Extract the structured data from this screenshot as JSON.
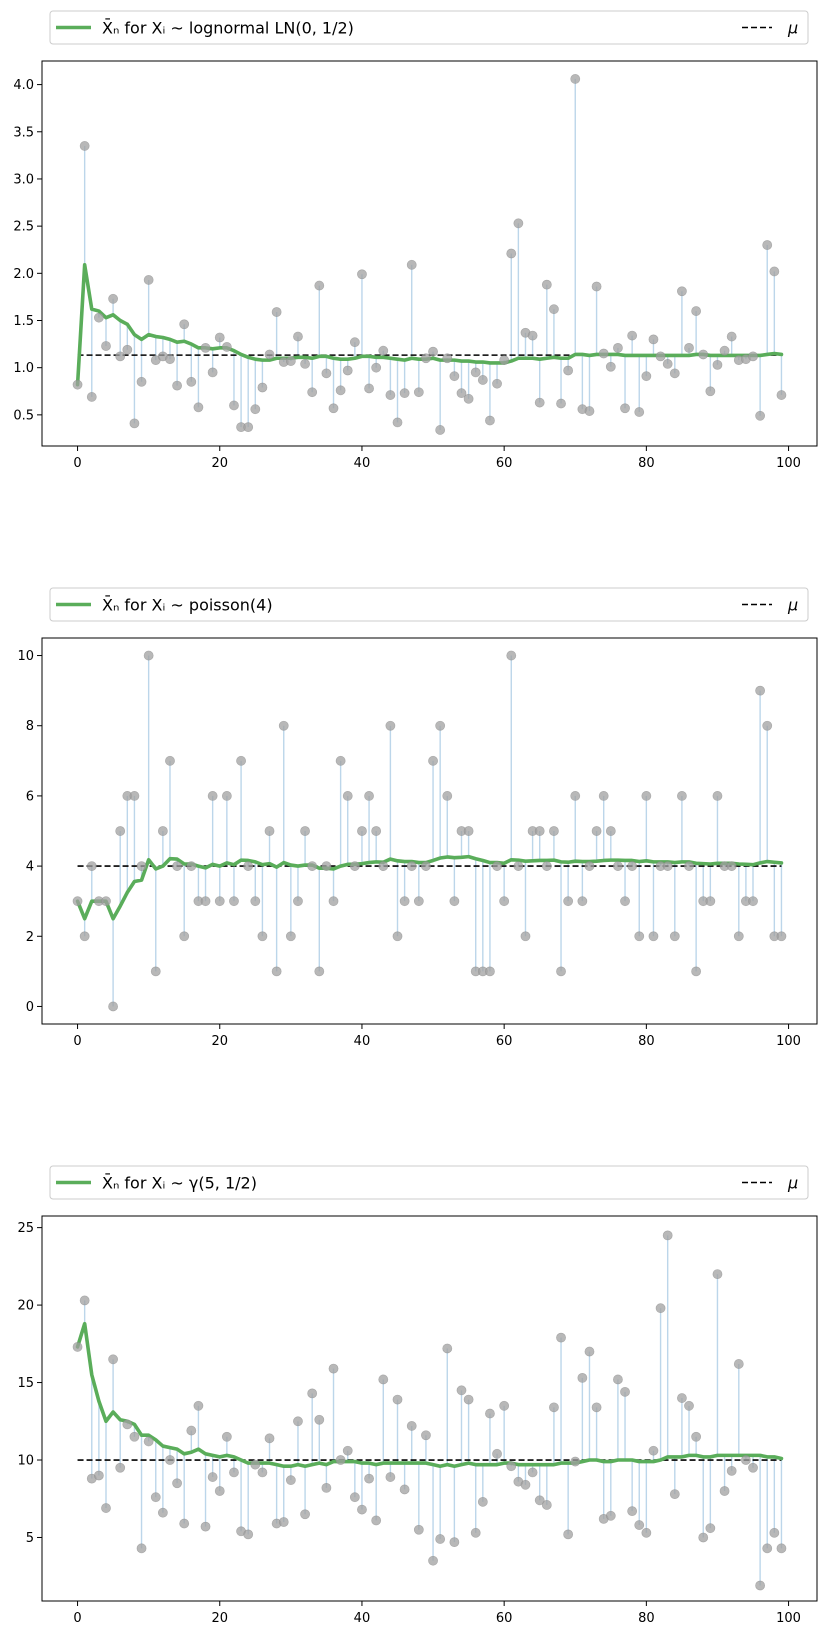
{
  "chart_data": [
    {
      "type": "scatter",
      "legend": {
        "location": "top, spanning width",
        "mean_label": "X̄ₙ for Xᵢ ~ lognormal LN(0, 1/2)",
        "mu_label": "μ"
      },
      "x": [
        0,
        1,
        2,
        3,
        4,
        5,
        6,
        7,
        8,
        9,
        10,
        11,
        12,
        13,
        14,
        15,
        16,
        17,
        18,
        19,
        20,
        21,
        22,
        23,
        24,
        25,
        26,
        27,
        28,
        29,
        30,
        31,
        32,
        33,
        34,
        35,
        36,
        37,
        38,
        39,
        40,
        41,
        42,
        43,
        44,
        45,
        46,
        47,
        48,
        49,
        50,
        51,
        52,
        53,
        54,
        55,
        56,
        57,
        58,
        59,
        60,
        61,
        62,
        63,
        64,
        65,
        66,
        67,
        68,
        69,
        70,
        71,
        72,
        73,
        74,
        75,
        76,
        77,
        78,
        79,
        80,
        81,
        82,
        83,
        84,
        85,
        86,
        87,
        88,
        89,
        90,
        91,
        92,
        93,
        94,
        95,
        96,
        97,
        98,
        99
      ],
      "samples": [
        0.82,
        3.35,
        0.69,
        1.53,
        1.23,
        1.73,
        1.12,
        1.19,
        0.41,
        0.85,
        1.93,
        1.08,
        1.12,
        1.09,
        0.81,
        1.46,
        0.85,
        0.58,
        1.21,
        0.95,
        1.32,
        1.22,
        0.6,
        0.37,
        0.37,
        0.56,
        0.79,
        1.14,
        1.59,
        1.06,
        1.07,
        1.33,
        1.04,
        0.74,
        1.87,
        0.94,
        0.57,
        0.76,
        0.97,
        1.27,
        1.99,
        0.78,
        1.0,
        1.18,
        0.71,
        0.42,
        0.73,
        2.09,
        0.74,
        1.1,
        1.17,
        0.34,
        1.1,
        0.91,
        0.73,
        0.67,
        0.95,
        0.87,
        0.44,
        0.83,
        1.08,
        2.21,
        2.53,
        1.37,
        1.34,
        0.63,
        1.88,
        1.62,
        0.62,
        0.97,
        4.06,
        0.56,
        0.54,
        1.86,
        1.15,
        1.01,
        1.21,
        0.57,
        1.34,
        0.53,
        0.91,
        1.3,
        1.12,
        1.04,
        0.94,
        1.81,
        1.21,
        1.6,
        1.14,
        0.75,
        1.03,
        1.18,
        1.33,
        1.08,
        1.09,
        1.12,
        0.49,
        2.3,
        2.02,
        0.71
      ],
      "running_mean": [
        0.82,
        2.09,
        1.62,
        1.6,
        1.53,
        1.56,
        1.5,
        1.46,
        1.35,
        1.3,
        1.35,
        1.33,
        1.32,
        1.3,
        1.27,
        1.28,
        1.25,
        1.21,
        1.21,
        1.2,
        1.21,
        1.21,
        1.18,
        1.14,
        1.11,
        1.09,
        1.08,
        1.08,
        1.1,
        1.1,
        1.1,
        1.11,
        1.11,
        1.1,
        1.12,
        1.12,
        1.1,
        1.09,
        1.09,
        1.1,
        1.12,
        1.12,
        1.11,
        1.11,
        1.1,
        1.09,
        1.08,
        1.1,
        1.09,
        1.09,
        1.1,
        1.08,
        1.08,
        1.08,
        1.07,
        1.07,
        1.06,
        1.06,
        1.05,
        1.05,
        1.05,
        1.07,
        1.1,
        1.1,
        1.1,
        1.09,
        1.1,
        1.11,
        1.1,
        1.1,
        1.14,
        1.14,
        1.13,
        1.14,
        1.14,
        1.14,
        1.14,
        1.13,
        1.13,
        1.13,
        1.13,
        1.13,
        1.13,
        1.13,
        1.13,
        1.13,
        1.13,
        1.14,
        1.14,
        1.13,
        1.13,
        1.13,
        1.13,
        1.13,
        1.13,
        1.13,
        1.13,
        1.14,
        1.15,
        1.14
      ],
      "mu": 1.1331,
      "xlim": [
        -5,
        104
      ],
      "ylim": [
        0.17,
        4.25
      ],
      "xticks": [
        0,
        20,
        40,
        60,
        80,
        100
      ],
      "yticks": [
        0.5,
        1.0,
        1.5,
        2.0,
        2.5,
        3.0,
        3.5,
        4.0
      ],
      "ytick_labels": [
        "0.5",
        "1.0",
        "1.5",
        "2.0",
        "2.5",
        "3.0",
        "3.5",
        "4.0"
      ],
      "colors": {
        "mean_line": "#5aad5a",
        "sample_point": "#a0a0a0",
        "stem": "#bcd6ea",
        "mu_line": "#000000"
      },
      "grid": false
    },
    {
      "type": "scatter",
      "legend": {
        "location": "top, spanning width",
        "mean_label": "X̄ₙ for Xᵢ ~ poisson(4)",
        "mu_label": "μ"
      },
      "x": [
        0,
        1,
        2,
        3,
        4,
        5,
        6,
        7,
        8,
        9,
        10,
        11,
        12,
        13,
        14,
        15,
        16,
        17,
        18,
        19,
        20,
        21,
        22,
        23,
        24,
        25,
        26,
        27,
        28,
        29,
        30,
        31,
        32,
        33,
        34,
        35,
        36,
        37,
        38,
        39,
        40,
        41,
        42,
        43,
        44,
        45,
        46,
        47,
        48,
        49,
        50,
        51,
        52,
        53,
        54,
        55,
        56,
        57,
        58,
        59,
        60,
        61,
        62,
        63,
        64,
        65,
        66,
        67,
        68,
        69,
        70,
        71,
        72,
        73,
        74,
        75,
        76,
        77,
        78,
        79,
        80,
        81,
        82,
        83,
        84,
        85,
        86,
        87,
        88,
        89,
        90,
        91,
        92,
        93,
        94,
        95,
        96,
        97,
        98,
        99
      ],
      "samples": [
        3,
        2,
        4,
        3,
        3,
        0,
        5,
        6,
        6,
        4,
        10,
        1,
        5,
        7,
        4,
        2,
        4,
        3,
        3,
        6,
        3,
        6,
        3,
        7,
        4,
        3,
        2,
        5,
        1,
        8,
        2,
        3,
        5,
        4,
        1,
        4,
        3,
        7,
        6,
        4,
        5,
        6,
        5,
        4,
        8,
        2,
        3,
        4,
        3,
        4,
        7,
        8,
        6,
        3,
        5,
        5,
        1,
        1,
        1,
        4,
        3,
        10,
        4,
        2,
        5,
        5,
        4,
        5,
        1,
        3,
        6,
        3,
        4,
        5,
        6,
        5,
        4,
        3,
        4,
        2,
        6,
        2,
        4,
        4,
        2,
        6,
        4,
        1,
        3,
        3,
        6,
        4,
        4,
        2,
        3,
        3,
        9,
        8,
        2,
        2
      ],
      "running_mean": [
        3,
        2.5,
        3,
        3,
        3,
        2.5,
        2.86,
        3.25,
        3.56,
        3.6,
        4.18,
        3.92,
        4.0,
        4.21,
        4.2,
        4.06,
        4.06,
        4.0,
        3.95,
        4.05,
        4.0,
        4.09,
        4.04,
        4.17,
        4.16,
        4.12,
        4.04,
        4.07,
        3.97,
        4.1,
        4.03,
        4.0,
        4.03,
        4.03,
        3.94,
        3.94,
        3.92,
        4.0,
        4.05,
        4.05,
        4.07,
        4.1,
        4.12,
        4.11,
        4.2,
        4.15,
        4.13,
        4.13,
        4.1,
        4.1,
        4.16,
        4.23,
        4.26,
        4.24,
        4.25,
        4.27,
        4.21,
        4.16,
        4.1,
        4.1,
        4.08,
        4.18,
        4.17,
        4.14,
        4.15,
        4.16,
        4.16,
        4.17,
        4.12,
        4.11,
        4.14,
        4.13,
        4.13,
        4.14,
        4.16,
        4.17,
        4.17,
        4.16,
        4.16,
        4.13,
        4.15,
        4.12,
        4.12,
        4.12,
        4.1,
        4.12,
        4.12,
        4.08,
        4.07,
        4.06,
        4.08,
        4.08,
        4.08,
        4.06,
        4.05,
        4.04,
        4.09,
        4.13,
        4.11,
        4.09
      ],
      "mu": 4,
      "xlim": [
        -5,
        104
      ],
      "ylim": [
        -0.5,
        10.5
      ],
      "xticks": [
        0,
        20,
        40,
        60,
        80,
        100
      ],
      "yticks": [
        0,
        2,
        4,
        6,
        8,
        10
      ],
      "ytick_labels": [
        "0",
        "2",
        "4",
        "6",
        "8",
        "10"
      ],
      "colors": {
        "mean_line": "#5aad5a",
        "sample_point": "#a0a0a0",
        "stem": "#bcd6ea",
        "mu_line": "#000000"
      },
      "grid": false
    },
    {
      "type": "scatter",
      "legend": {
        "location": "top, spanning width",
        "mean_label": "X̄ₙ for Xᵢ ~ γ(5, 1/2)",
        "mu_label": "μ"
      },
      "x": [
        0,
        1,
        2,
        3,
        4,
        5,
        6,
        7,
        8,
        9,
        10,
        11,
        12,
        13,
        14,
        15,
        16,
        17,
        18,
        19,
        20,
        21,
        22,
        23,
        24,
        25,
        26,
        27,
        28,
        29,
        30,
        31,
        32,
        33,
        34,
        35,
        36,
        37,
        38,
        39,
        40,
        41,
        42,
        43,
        44,
        45,
        46,
        47,
        48,
        49,
        50,
        51,
        52,
        53,
        54,
        55,
        56,
        57,
        58,
        59,
        60,
        61,
        62,
        63,
        64,
        65,
        66,
        67,
        68,
        69,
        70,
        71,
        72,
        73,
        74,
        75,
        76,
        77,
        78,
        79,
        80,
        81,
        82,
        83,
        84,
        85,
        86,
        87,
        88,
        89,
        90,
        91,
        92,
        93,
        94,
        95,
        96,
        97,
        98,
        99
      ],
      "samples": [
        17.3,
        20.3,
        8.8,
        9.0,
        6.9,
        16.5,
        9.5,
        12.3,
        11.5,
        4.3,
        11.2,
        7.6,
        6.6,
        10.0,
        8.5,
        5.9,
        11.9,
        13.5,
        5.7,
        8.9,
        8.0,
        11.5,
        9.2,
        5.4,
        5.2,
        9.7,
        9.2,
        11.4,
        5.9,
        6.0,
        8.7,
        12.5,
        6.5,
        14.3,
        12.6,
        8.2,
        15.9,
        10.0,
        10.6,
        7.6,
        6.8,
        8.8,
        6.1,
        15.2,
        8.9,
        13.9,
        8.1,
        12.2,
        5.5,
        11.6,
        3.5,
        4.9,
        17.2,
        4.7,
        14.5,
        13.9,
        5.3,
        7.3,
        13.0,
        10.4,
        13.5,
        9.6,
        8.6,
        8.4,
        9.2,
        7.4,
        7.1,
        13.4,
        17.9,
        5.2,
        9.9,
        15.3,
        17.0,
        13.4,
        6.2,
        6.4,
        15.2,
        14.4,
        6.7,
        5.8,
        5.3,
        10.6,
        19.8,
        24.5,
        7.8,
        14.0,
        13.5,
        11.5,
        5.0,
        5.6,
        22.0,
        8.0,
        9.3,
        16.2,
        10.0,
        9.5,
        1.9,
        4.3,
        5.3,
        4.3
      ],
      "running_mean": [
        17.3,
        18.8,
        15.5,
        13.8,
        12.5,
        13.1,
        12.6,
        12.5,
        12.3,
        11.6,
        11.6,
        11.3,
        10.9,
        10.8,
        10.7,
        10.4,
        10.5,
        10.7,
        10.4,
        10.3,
        10.2,
        10.3,
        10.2,
        10.0,
        9.8,
        9.8,
        9.8,
        9.8,
        9.7,
        9.6,
        9.6,
        9.7,
        9.6,
        9.7,
        9.8,
        9.7,
        9.9,
        9.9,
        9.9,
        9.9,
        9.8,
        9.8,
        9.7,
        9.8,
        9.8,
        9.8,
        9.8,
        9.8,
        9.8,
        9.8,
        9.7,
        9.6,
        9.7,
        9.6,
        9.7,
        9.8,
        9.7,
        9.7,
        9.7,
        9.7,
        9.8,
        9.8,
        9.7,
        9.7,
        9.7,
        9.7,
        9.7,
        9.7,
        9.8,
        9.8,
        9.8,
        9.9,
        10.0,
        10.0,
        9.9,
        9.9,
        10.0,
        10.0,
        10.0,
        9.9,
        9.9,
        9.9,
        10.0,
        10.2,
        10.2,
        10.2,
        10.3,
        10.3,
        10.2,
        10.2,
        10.3,
        10.3,
        10.3,
        10.3,
        10.3,
        10.3,
        10.3,
        10.2,
        10.2,
        10.1
      ],
      "mu": 10,
      "xlim": [
        -5,
        104
      ],
      "ylim": [
        0.9,
        25.75
      ],
      "xticks": [
        0,
        20,
        40,
        60,
        80,
        100
      ],
      "yticks": [
        5,
        10,
        15,
        20,
        25
      ],
      "ytick_labels": [
        "5",
        "10",
        "15",
        "20",
        "25"
      ],
      "colors": {
        "mean_line": "#5aad5a",
        "sample_point": "#a0a0a0",
        "stem": "#bcd6ea",
        "mu_line": "#000000"
      },
      "grid": false
    }
  ]
}
